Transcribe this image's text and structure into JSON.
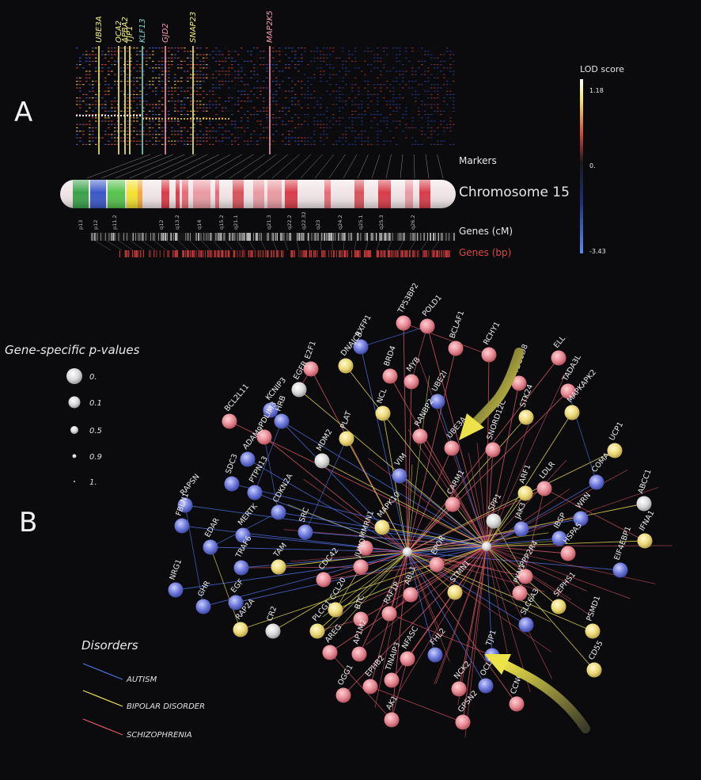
{
  "panels": {
    "a": "A",
    "b": "B"
  },
  "panel_a": {
    "top_genes": [
      {
        "name": "UBE3A",
        "color": "#f3f07a"
      },
      {
        "name": "OCA2",
        "color": "#f3f07a"
      },
      {
        "name": "APBA2",
        "color": "#f3f07a"
      },
      {
        "name": "TJP1",
        "color": "#f3f07a"
      },
      {
        "name": "KLF13",
        "color": "#7fd6c8"
      },
      {
        "name": "GJD2",
        "color": "#f39ab0"
      },
      {
        "name": "SNAP23",
        "color": "#f3f07a"
      },
      {
        "name": "MAP2K5",
        "color": "#f39ab0"
      }
    ],
    "side_labels": {
      "markers": "Markers",
      "chromosome": "Chromosome 15",
      "genes_cm": "Genes (cM)",
      "genes_bp": "Genes (bp)"
    },
    "lod": {
      "title": "LOD score",
      "max": "1.18",
      "mid": "0.",
      "min": "-3.43"
    },
    "bands": [
      "p13",
      "p12",
      "p11.2",
      "q12",
      "q13.2",
      "q14",
      "q15.2",
      "q21.1",
      "q21.3",
      "q22.2",
      "q22.32",
      "q23",
      "q24.2",
      "q25.1",
      "q25.3",
      "q26.2"
    ]
  },
  "legend": {
    "pvalue_title": "Gene-specific p-values",
    "pvalues": [
      "0.",
      "0.1",
      "0.5",
      "0.9",
      "1."
    ],
    "disorders_title": "Disorders",
    "disorders": [
      {
        "name": "AUTISM",
        "color": "#4f6fe0"
      },
      {
        "name": "BIPOLAR DISORDER",
        "color": "#e8e05a"
      },
      {
        "name": "SCHIZOPHRENIA",
        "color": "#e05a6a"
      }
    ]
  },
  "network": {
    "hubs": [
      "UBE3A",
      "SNORD12C",
      "ARF1"
    ],
    "nodes": [
      {
        "name": "TP53BP2",
        "c": "r"
      },
      {
        "name": "POLD1",
        "c": "r"
      },
      {
        "name": "BCLAF1",
        "c": "r"
      },
      {
        "name": "RCHY1",
        "c": "r"
      },
      {
        "name": "ELL",
        "c": "r"
      },
      {
        "name": "TBC1D8",
        "c": "r"
      },
      {
        "name": "TADA3L",
        "c": "r"
      },
      {
        "name": "MAPKAPK2",
        "c": "y"
      },
      {
        "name": "STK24",
        "c": "y"
      },
      {
        "name": "UBE2I",
        "c": "b"
      },
      {
        "name": "MYB",
        "c": "r"
      },
      {
        "name": "BRD4",
        "c": "r"
      },
      {
        "name": "RXFP1",
        "c": "b"
      },
      {
        "name": "DNAJC3",
        "c": "y"
      },
      {
        "name": "E2F1",
        "c": "r"
      },
      {
        "name": "EGFR",
        "c": "w"
      },
      {
        "name": "KCNIP3",
        "c": "b"
      },
      {
        "name": "HRB",
        "c": "b"
      },
      {
        "name": "PDLIM3",
        "c": "r"
      },
      {
        "name": "BCL2L11",
        "c": "r"
      },
      {
        "name": "NCL",
        "c": "y"
      },
      {
        "name": "RANBP2",
        "c": "r"
      },
      {
        "name": "UBE3A",
        "c": "r"
      },
      {
        "name": "SNORD12C",
        "c": "r"
      },
      {
        "name": "UCP1",
        "c": "y"
      },
      {
        "name": "COMA",
        "c": "b"
      },
      {
        "name": "ABCC1",
        "c": "w"
      },
      {
        "name": "IFNA1",
        "c": "y"
      },
      {
        "name": "LDLR",
        "c": "r"
      },
      {
        "name": "ARF1",
        "c": "y"
      },
      {
        "name": "CARM1",
        "c": "r"
      },
      {
        "name": "VIM",
        "c": "b"
      },
      {
        "name": "PLAT",
        "c": "y"
      },
      {
        "name": "MDM2",
        "c": "w"
      },
      {
        "name": "ADAM9",
        "c": "b"
      },
      {
        "name": "SDC3",
        "c": "b"
      },
      {
        "name": "PTPN13",
        "c": "b"
      },
      {
        "name": "RAPSN",
        "c": "b"
      },
      {
        "name": "FBLN1",
        "c": "b"
      },
      {
        "name": "CDKN2A",
        "c": "b"
      },
      {
        "name": "MERTK",
        "c": "b"
      },
      {
        "name": "SRC",
        "c": "b"
      },
      {
        "name": "EDAR",
        "c": "b"
      },
      {
        "name": "MAPK10",
        "c": "y"
      },
      {
        "name": "MMRN1",
        "c": "r"
      },
      {
        "name": "SPP1",
        "c": "w"
      },
      {
        "name": "WRN",
        "c": "b"
      },
      {
        "name": "JAK3",
        "c": "b"
      },
      {
        "name": "IBSP",
        "c": "b"
      },
      {
        "name": "HSPA5",
        "c": "r"
      },
      {
        "name": "EIF4EBP1",
        "c": "b"
      },
      {
        "name": "TRAF6",
        "c": "b"
      },
      {
        "name": "TAM",
        "c": "y"
      },
      {
        "name": "NRG1",
        "c": "b"
      },
      {
        "name": "GHR",
        "c": "b"
      },
      {
        "name": "EGF",
        "c": "b"
      },
      {
        "name": "JUND",
        "c": "r"
      },
      {
        "name": "EPOR",
        "c": "r"
      },
      {
        "name": "CDC42",
        "c": "r"
      },
      {
        "name": "ABL1",
        "c": "r"
      },
      {
        "name": "PPP2R4",
        "c": "r"
      },
      {
        "name": "SEPHS1",
        "c": "y"
      },
      {
        "name": "PSMD1",
        "c": "y"
      },
      {
        "name": "CD55",
        "c": "y"
      },
      {
        "name": "STMN1",
        "c": "y"
      },
      {
        "name": "PKN1",
        "c": "r"
      },
      {
        "name": "SLC6A3",
        "c": "b"
      },
      {
        "name": "RAP2A",
        "c": "y"
      },
      {
        "name": "CR2",
        "c": "w"
      },
      {
        "name": "CCL20",
        "c": "y"
      },
      {
        "name": "PLCG1",
        "c": "y"
      },
      {
        "name": "BTC",
        "c": "r"
      },
      {
        "name": "RAF1P",
        "c": "r"
      },
      {
        "name": "AREG",
        "c": "r"
      },
      {
        "name": "AP1M2",
        "c": "r"
      },
      {
        "name": "NFASC",
        "c": "r"
      },
      {
        "name": "FHL2",
        "c": "b"
      },
      {
        "name": "TJP1",
        "c": "b"
      },
      {
        "name": "OCLN",
        "c": "b"
      },
      {
        "name": "NCK2",
        "c": "r"
      },
      {
        "name": "CCNG2",
        "c": "r"
      },
      {
        "name": "OGG1",
        "c": "r"
      },
      {
        "name": "EPHB2",
        "c": "r"
      },
      {
        "name": "TINAIP3",
        "c": "r"
      },
      {
        "name": "AK1",
        "c": "r"
      },
      {
        "name": "GPSN2",
        "c": "r"
      }
    ]
  }
}
